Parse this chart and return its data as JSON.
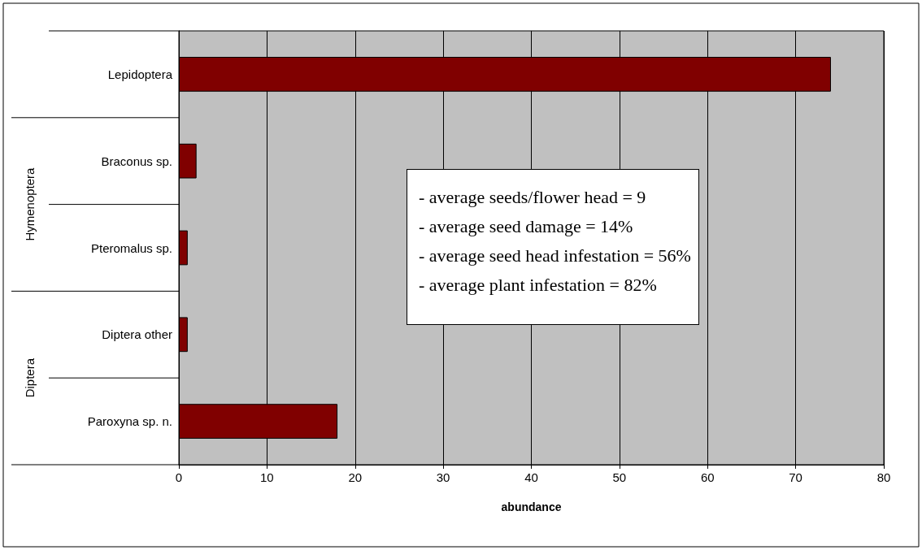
{
  "chart_data": {
    "type": "bar",
    "orientation": "horizontal",
    "xlabel": "abundance",
    "categories": [
      "Lepidoptera",
      "Braconus sp.",
      "Pteromalus sp.",
      "Diptera other",
      "Paroxyna sp. n."
    ],
    "values": [
      74,
      2,
      1,
      1,
      18
    ],
    "color": "#800000",
    "xlim": [
      0,
      80
    ],
    "xticks": [
      0,
      10,
      20,
      30,
      40,
      50,
      60,
      70,
      80
    ],
    "grid": "x",
    "annotations": [
      "Hymenoptera",
      "Diptera",
      "-    average seeds/flower head = 9",
      "-    average seed damage = 14%",
      "-    average seed head infestation = 56%",
      "-    average plant infestation = 82%"
    ]
  }
}
